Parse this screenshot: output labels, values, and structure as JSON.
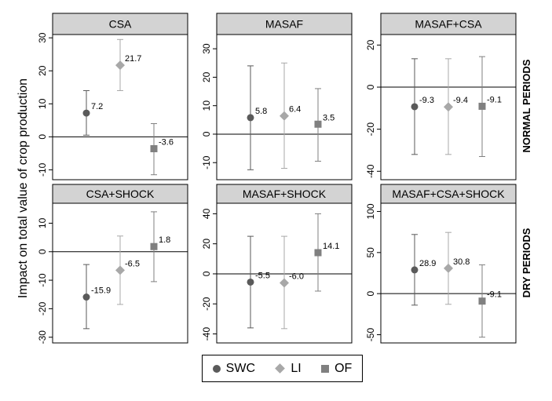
{
  "figure": {
    "ylabel": "Impact on total value of crop production",
    "row_labels": [
      "NORMAL PERIODS",
      "DRY PERIODS"
    ]
  },
  "legend": {
    "items": [
      {
        "name": "SWC",
        "color": "#5a5a5a",
        "shape": "circle"
      },
      {
        "name": "LI",
        "color": "#a8a8a8",
        "shape": "diamond"
      },
      {
        "name": "OF",
        "color": "#808080",
        "shape": "square"
      }
    ]
  },
  "chart_data": [
    {
      "type": "scatter",
      "title": "CSA",
      "ylim": [
        -13,
        31
      ],
      "yticks": [
        -10,
        0,
        10,
        20,
        30
      ],
      "series": [
        {
          "name": "SWC",
          "value": 7.2,
          "label": "7.2",
          "ci": [
            0.5,
            14
          ]
        },
        {
          "name": "LI",
          "value": 21.7,
          "label": "21.7",
          "ci": [
            14,
            29.5
          ]
        },
        {
          "name": "OF",
          "value": -3.6,
          "label": "-3.6",
          "ci": [
            -11.5,
            4
          ]
        }
      ]
    },
    {
      "type": "scatter",
      "title": "MASAF",
      "ylim": [
        -16,
        35
      ],
      "yticks": [
        -10,
        0,
        10,
        20,
        30
      ],
      "series": [
        {
          "name": "SWC",
          "value": 5.8,
          "label": "5.8",
          "ci": [
            -12.5,
            24
          ]
        },
        {
          "name": "LI",
          "value": 6.4,
          "label": "6.4",
          "ci": [
            -12,
            25
          ]
        },
        {
          "name": "OF",
          "value": 3.5,
          "label": "3.5",
          "ci": [
            -9.5,
            16
          ]
        }
      ]
    },
    {
      "type": "scatter",
      "title": "MASAF+CSA",
      "ylim": [
        -44,
        25
      ],
      "yticks": [
        -40,
        -20,
        0,
        20
      ],
      "series": [
        {
          "name": "SWC",
          "value": -9.3,
          "label": "-9.3",
          "ci": [
            -32,
            13.5
          ]
        },
        {
          "name": "LI",
          "value": -9.4,
          "label": "-9.4",
          "ci": [
            -32,
            13.5
          ]
        },
        {
          "name": "OF",
          "value": -9.1,
          "label": "-9.1",
          "ci": [
            -33,
            14.5
          ]
        }
      ]
    },
    {
      "type": "scatter",
      "title": "CSA+SHOCK",
      "ylim": [
        -32,
        17
      ],
      "yticks": [
        -30,
        -20,
        -10,
        0,
        10
      ],
      "series": [
        {
          "name": "SWC",
          "value": -15.9,
          "label": "-15.9",
          "ci": [
            -27,
            -4.5
          ]
        },
        {
          "name": "LI",
          "value": -6.5,
          "label": "-6.5",
          "ci": [
            -18.5,
            5.5
          ]
        },
        {
          "name": "OF",
          "value": 1.8,
          "label": "1.8",
          "ci": [
            -10.5,
            14
          ]
        }
      ]
    },
    {
      "type": "scatter",
      "title": "MASAF+SHOCK",
      "ylim": [
        -46,
        47
      ],
      "yticks": [
        -40,
        -20,
        0,
        20,
        40
      ],
      "series": [
        {
          "name": "SWC",
          "value": -5.5,
          "label": "-5.5",
          "ci": [
            -36,
            25
          ]
        },
        {
          "name": "LI",
          "value": -6.0,
          "label": "-6.0",
          "ci": [
            -36.5,
            25
          ]
        },
        {
          "name": "OF",
          "value": 14.1,
          "label": "14.1",
          "ci": [
            -11.5,
            40
          ]
        }
      ]
    },
    {
      "type": "scatter",
      "title": "MASAF+CSA+SHOCK",
      "ylim": [
        -60,
        110
      ],
      "yticks": [
        -50,
        0,
        50,
        100
      ],
      "series": [
        {
          "name": "SWC",
          "value": 28.9,
          "label": "28.9",
          "ci": [
            -14,
            72
          ]
        },
        {
          "name": "LI",
          "value": 30.8,
          "label": "30.8",
          "ci": [
            -13,
            74.5
          ]
        },
        {
          "name": "OF",
          "value": -9.1,
          "label": "-9.1",
          "ci": [
            -53,
            35
          ]
        }
      ]
    }
  ]
}
